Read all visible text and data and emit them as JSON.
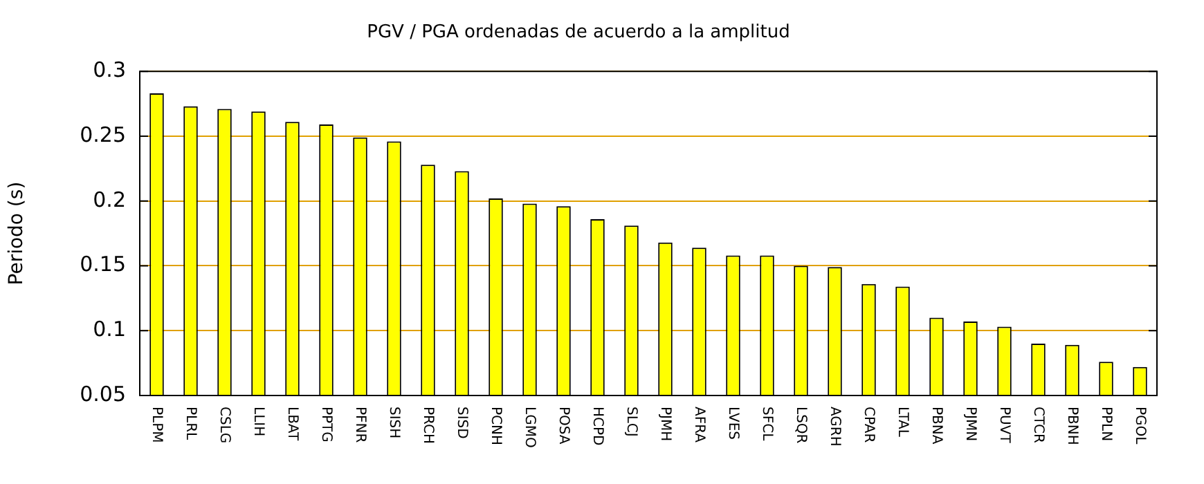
{
  "chart_data": {
    "type": "bar",
    "title": "PGV / PGA ordenadas de acuerdo a la amplitud",
    "ylabel": "Periodo (s)",
    "categories": [
      "PLPM",
      "PLRL",
      "CSLG",
      "LLIH",
      "LBAT",
      "PPTG",
      "PFNR",
      "SISH",
      "PRCH",
      "SISD",
      "PCNH",
      "LGMO",
      "POSA",
      "HCPD",
      "SLCJ",
      "PJMH",
      "AFRA",
      "LVES",
      "SFCL",
      "LSQR",
      "AGRH",
      "CPAR",
      "LTAL",
      "PBNA",
      "PJMN",
      "PUVT",
      "CTCR",
      "PBNH",
      "PPLN",
      "PGOL"
    ],
    "values": [
      0.283,
      0.273,
      0.271,
      0.269,
      0.261,
      0.259,
      0.249,
      0.246,
      0.228,
      0.223,
      0.202,
      0.198,
      0.196,
      0.186,
      0.181,
      0.168,
      0.164,
      0.158,
      0.158,
      0.15,
      0.149,
      0.136,
      0.134,
      0.11,
      0.107,
      0.103,
      0.09,
      0.089,
      0.076,
      0.072
    ],
    "color": "#ffff00",
    "ylim": [
      0.05,
      0.3
    ],
    "yticks": [
      0.05,
      0.1,
      0.15,
      0.2,
      0.25,
      0.3
    ],
    "grid": "y",
    "legend": false
  }
}
